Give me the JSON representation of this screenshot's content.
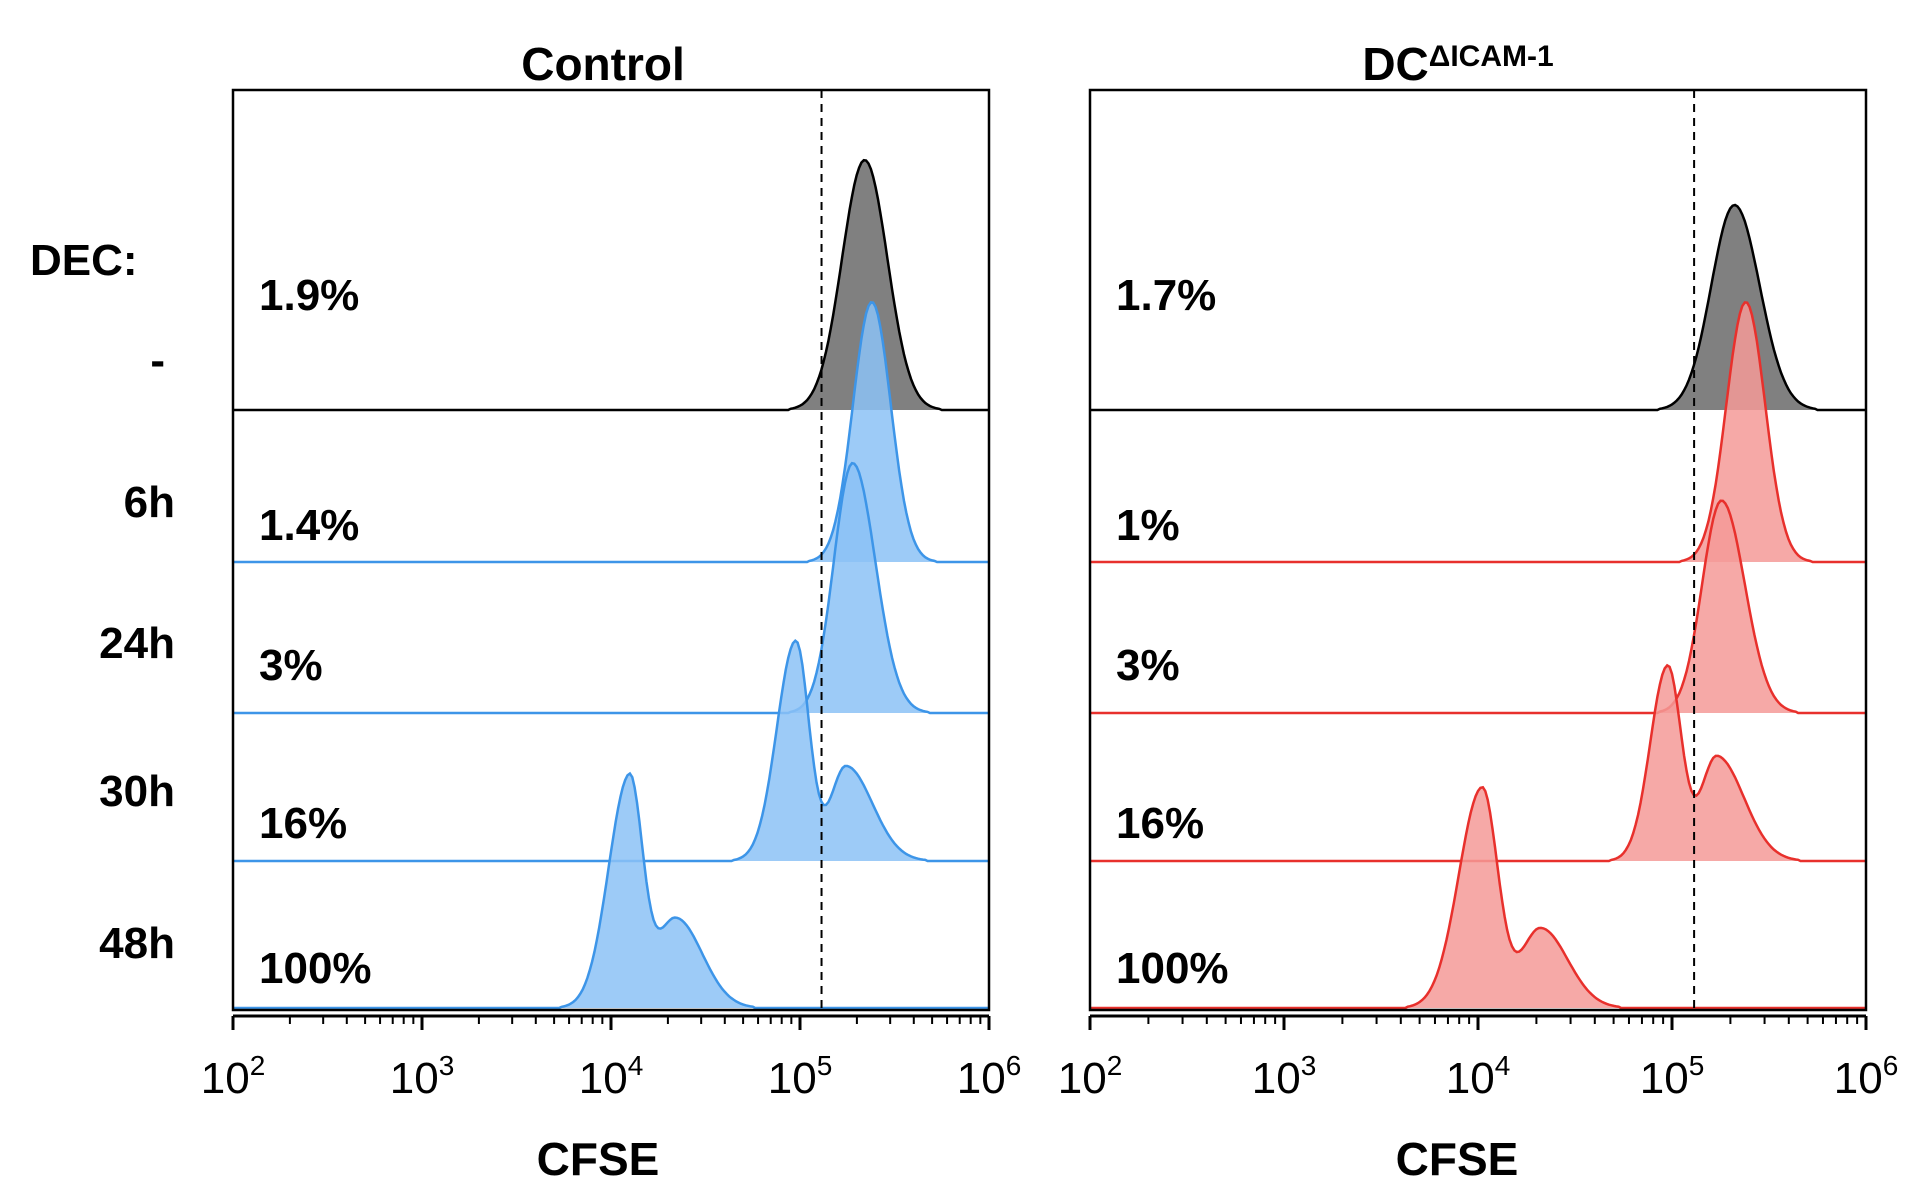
{
  "row_header": "DEC:",
  "chart_data": [
    {
      "type": "histogram-overlay",
      "title_main": "Control",
      "title_sup": "",
      "xlabel": "CFSE",
      "x_scale": "log10",
      "xlim": [
        100,
        1000000
      ],
      "x_ticks": [
        {
          "base": "10",
          "exp": "2"
        },
        {
          "base": "10",
          "exp": "3"
        },
        {
          "base": "10",
          "exp": "4"
        },
        {
          "base": "10",
          "exp": "5"
        },
        {
          "base": "10",
          "exp": "6"
        }
      ],
      "gate_threshold": 130000,
      "color": "#3d95e8",
      "fill": "#8cc2f6",
      "reference_color": "#000000",
      "reference_fill": "#808080",
      "series": [
        {
          "name": "-",
          "percent": "1.9%",
          "reference": true,
          "peaks": [
            {
              "x": 220000,
              "h": 1.0,
              "sl": 0.12,
              "sr": 0.12
            }
          ]
        },
        {
          "name": "6h",
          "percent": "1.4%",
          "peaks": [
            {
              "x": 240000,
              "h": 1.0,
              "sl": 0.1,
              "sr": 0.1
            }
          ]
        },
        {
          "name": "24h",
          "percent": "3%",
          "peaks": [
            {
              "x": 190000,
              "h": 1.0,
              "sl": 0.1,
              "sr": 0.12
            }
          ]
        },
        {
          "name": "30h",
          "percent": "16%",
          "peaks": [
            {
              "x": 95000,
              "h": 0.88,
              "sl": 0.1,
              "sr": 0.07
            },
            {
              "x": 175000,
              "h": 0.38,
              "sl": 0.08,
              "sr": 0.14
            }
          ]
        },
        {
          "name": "48h",
          "percent": "100%",
          "peaks": [
            {
              "x": 12500,
              "h": 0.92,
              "sl": 0.11,
              "sr": 0.07
            },
            {
              "x": 22000,
              "h": 0.36,
              "sl": 0.1,
              "sr": 0.14
            }
          ]
        }
      ]
    },
    {
      "type": "histogram-overlay",
      "title_main": "DC",
      "title_sup": "ΔICAM-1",
      "xlabel": "CFSE",
      "x_scale": "log10",
      "xlim": [
        100,
        1000000
      ],
      "x_ticks": [
        {
          "base": "10",
          "exp": "2"
        },
        {
          "base": "10",
          "exp": "3"
        },
        {
          "base": "10",
          "exp": "4"
        },
        {
          "base": "10",
          "exp": "5"
        },
        {
          "base": "10",
          "exp": "6"
        }
      ],
      "gate_threshold": 130000,
      "color": "#e8302c",
      "fill": "#f59a98",
      "reference_color": "#000000",
      "reference_fill": "#808080",
      "series": [
        {
          "name": "-",
          "percent": "1.7%",
          "reference": true,
          "peaks": [
            {
              "x": 210000,
              "h": 0.82,
              "sl": 0.12,
              "sr": 0.13
            }
          ]
        },
        {
          "name": "6h",
          "percent": "1%",
          "peaks": [
            {
              "x": 240000,
              "h": 1.0,
              "sl": 0.1,
              "sr": 0.1
            }
          ]
        },
        {
          "name": "24h",
          "percent": "3%",
          "peaks": [
            {
              "x": 180000,
              "h": 0.85,
              "sl": 0.1,
              "sr": 0.12
            }
          ]
        },
        {
          "name": "30h",
          "percent": "16%",
          "peaks": [
            {
              "x": 95000,
              "h": 0.78,
              "sl": 0.09,
              "sr": 0.07
            },
            {
              "x": 170000,
              "h": 0.42,
              "sl": 0.08,
              "sr": 0.14
            }
          ]
        },
        {
          "name": "48h",
          "percent": "100%",
          "peaks": [
            {
              "x": 10500,
              "h": 0.88,
              "sl": 0.12,
              "sr": 0.08
            },
            {
              "x": 21000,
              "h": 0.32,
              "sl": 0.1,
              "sr": 0.14
            }
          ]
        }
      ]
    }
  ]
}
